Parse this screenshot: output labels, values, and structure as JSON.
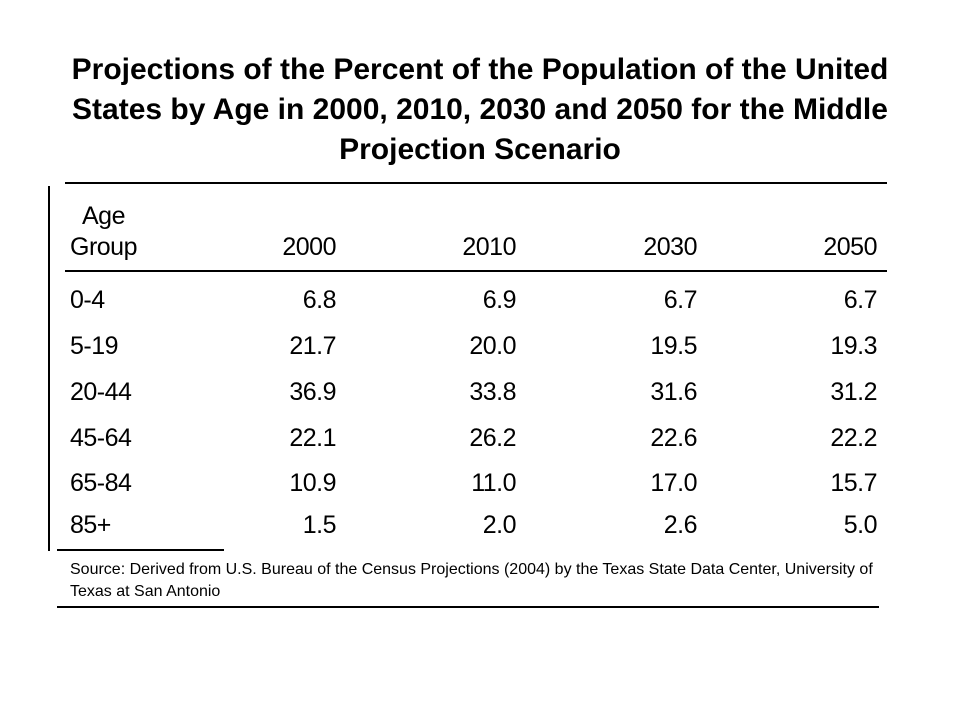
{
  "title": "Projections of the Percent of the Population of the United States by Age in 2000, 2010, 2030 and 2050 for the Middle Projection Scenario",
  "table": {
    "header": {
      "age_line1": "Age",
      "age_line2": "Group",
      "years": [
        "2000",
        "2010",
        "2030",
        "2050"
      ]
    },
    "rows": [
      {
        "group": "0-4",
        "values": [
          "6.8",
          "6.9",
          "6.7",
          "6.7"
        ]
      },
      {
        "group": "5-19",
        "values": [
          "21.7",
          "20.0",
          "19.5",
          "19.3"
        ]
      },
      {
        "group": "20-44",
        "values": [
          "36.9",
          "33.8",
          "31.6",
          "31.2"
        ]
      },
      {
        "group": "45-64",
        "values": [
          "22.1",
          "26.2",
          "22.6",
          "22.2"
        ]
      },
      {
        "group": "65-84",
        "values": [
          "10.9",
          "11.0",
          "17.0",
          "15.7"
        ]
      },
      {
        "group": "85+",
        "values": [
          "1.5",
          "2.0",
          "2.6",
          "5.0"
        ]
      }
    ]
  },
  "source": "Source: Derived from U.S. Bureau of the Census Projections (2004) by the Texas State Data Center, University of Texas at San Antonio"
}
